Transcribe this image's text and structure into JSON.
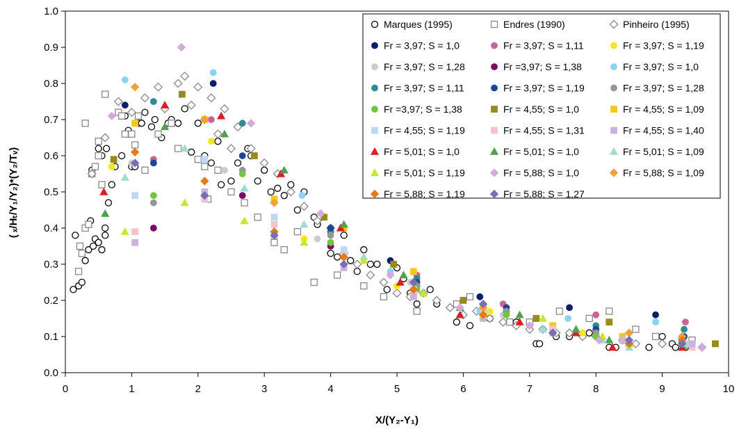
{
  "chart_data": {
    "type": "scatter",
    "title": "",
    "xlabel": "X/(Y₂-Y₁)",
    "ylabel": "( ₓ/Hₜ/Y₁/Y₂)*(Y₂/Tᵥ)",
    "xlim": [
      0,
      10
    ],
    "ylim": [
      0,
      1.0
    ],
    "xticks": [
      "0",
      "1",
      "2",
      "3",
      "4",
      "5",
      "6",
      "7",
      "8",
      "9",
      "10"
    ],
    "yticks": [
      "0.0",
      "0.1",
      "0.2",
      "0.3",
      "0.4",
      "0.5",
      "0.6",
      "0.7",
      "0.8",
      "0.9",
      "1.0"
    ],
    "grid": false,
    "legend_placement": "top-right",
    "series": [
      {
        "name": "Marques (1995)",
        "marker": "circle-open",
        "color": "#000000",
        "x": [
          0.12,
          0.15,
          0.2,
          0.25,
          0.3,
          0.35,
          0.38,
          0.42,
          0.45,
          0.5,
          0.55,
          0.6,
          0.65,
          0.7,
          0.4,
          0.5,
          0.55,
          0.6,
          0.62,
          0.75,
          0.85,
          0.9,
          0.95,
          1.0,
          1.05,
          1.1,
          1.15,
          1.2,
          1.3,
          1.35,
          1.45,
          1.55,
          1.6,
          1.7,
          1.8,
          1.9,
          2.0,
          2.1,
          2.2,
          2.3,
          2.35,
          2.5,
          2.6,
          2.75,
          2.8,
          2.9,
          3.0,
          3.1,
          3.2,
          3.3,
          3.4,
          3.5,
          3.6,
          3.75,
          3.8,
          4.0,
          4.1,
          4.2,
          4.3,
          4.4,
          4.5,
          4.6,
          4.7,
          4.85,
          5.0,
          5.1,
          5.2,
          5.3,
          5.5,
          5.6,
          5.9,
          6.1,
          6.4,
          6.8,
          7.1,
          7.15,
          7.4,
          7.6,
          7.9,
          8.2,
          8.3,
          8.8,
          9.0,
          9.15,
          9.2,
          9.35
        ],
        "y": [
          0.23,
          0.38,
          0.24,
          0.25,
          0.31,
          0.34,
          0.42,
          0.35,
          0.37,
          0.36,
          0.34,
          0.38,
          0.47,
          0.52,
          0.56,
          0.62,
          0.6,
          0.4,
          0.62,
          0.57,
          0.6,
          0.71,
          0.67,
          0.57,
          0.57,
          0.69,
          0.69,
          0.72,
          0.68,
          0.7,
          0.65,
          0.69,
          0.7,
          0.69,
          0.73,
          0.61,
          0.69,
          0.6,
          0.58,
          0.64,
          0.52,
          0.53,
          0.58,
          0.62,
          0.6,
          0.53,
          0.56,
          0.5,
          0.51,
          0.49,
          0.52,
          0.45,
          0.5,
          0.43,
          0.41,
          0.33,
          0.32,
          0.38,
          0.31,
          0.28,
          0.34,
          0.3,
          0.3,
          0.23,
          0.29,
          0.26,
          0.22,
          0.19,
          0.23,
          0.19,
          0.14,
          0.13,
          0.15,
          0.14,
          0.08,
          0.08,
          0.1,
          0.1,
          0.11,
          0.07,
          0.07,
          0.07,
          0.1,
          0.08,
          0.07,
          0.07
        ]
      },
      {
        "name": "Endres (1990)",
        "marker": "square-open",
        "color": "#888888",
        "x": [
          0.2,
          0.22,
          0.25,
          0.3,
          0.35,
          0.4,
          0.45,
          0.5,
          0.55,
          0.6,
          0.3,
          0.5,
          0.8,
          0.85,
          0.9,
          1.0,
          1.05,
          1.1,
          1.2,
          1.4,
          1.6,
          1.7,
          2.0,
          2.1,
          2.15,
          2.3,
          2.5,
          2.7,
          2.9,
          3.15,
          3.3,
          3.5,
          3.75,
          4.1,
          4.5,
          4.8,
          5.3,
          5.9,
          6.1,
          6.3,
          6.7,
          7.0,
          7.45,
          7.9,
          8.2,
          8.6,
          8.9,
          9.3,
          9.45
        ],
        "y": [
          0.28,
          0.35,
          0.33,
          0.4,
          0.41,
          0.55,
          0.57,
          0.6,
          0.52,
          0.77,
          0.69,
          0.64,
          0.72,
          0.71,
          0.66,
          0.66,
          0.63,
          0.71,
          0.56,
          0.66,
          0.69,
          0.62,
          0.59,
          0.57,
          0.48,
          0.56,
          0.5,
          0.47,
          0.43,
          0.36,
          0.34,
          0.39,
          0.25,
          0.27,
          0.24,
          0.21,
          0.17,
          0.19,
          0.21,
          0.17,
          0.14,
          0.14,
          0.17,
          0.15,
          0.17,
          0.12,
          0.1,
          0.09,
          0.09
        ]
      },
      {
        "name": "Pinheiro (1995)",
        "marker": "diamond-open",
        "color": "#888888",
        "x": [
          0.4,
          0.6,
          0.8,
          1.0,
          1.2,
          1.4,
          1.5,
          1.7,
          1.8,
          1.9,
          2.0,
          2.1,
          2.2,
          2.3,
          2.4,
          2.5,
          2.6,
          2.8,
          3.0,
          3.2,
          3.4,
          3.6,
          3.8,
          4.0,
          4.2,
          4.4,
          4.6,
          4.8,
          5.0,
          5.2,
          5.4,
          5.6,
          5.8,
          6.0,
          6.2,
          6.4,
          6.6,
          6.8,
          7.0,
          7.2,
          7.4,
          7.6,
          7.8,
          8.0,
          8.4,
          8.6,
          9.0,
          9.6
        ],
        "y": [
          0.55,
          0.65,
          0.75,
          0.72,
          0.76,
          0.79,
          0.73,
          0.8,
          0.82,
          0.74,
          0.79,
          0.7,
          0.76,
          0.66,
          0.73,
          0.62,
          0.68,
          0.62,
          0.58,
          0.55,
          0.5,
          0.46,
          0.42,
          0.4,
          0.33,
          0.3,
          0.27,
          0.25,
          0.22,
          0.21,
          0.22,
          0.2,
          0.18,
          0.16,
          0.17,
          0.15,
          0.14,
          0.13,
          0.12,
          0.12,
          0.11,
          0.11,
          0.1,
          0.1,
          0.09,
          0.08,
          0.08,
          0.07
        ]
      },
      {
        "name": "Fr = 3,97; S = 1,0",
        "marker": "circle",
        "color": "#0a1e6e",
        "x": [
          0.9,
          2.23,
          4.0,
          4.9,
          6.25,
          7.6,
          8.9
        ],
        "y": [
          0.74,
          0.8,
          0.39,
          0.31,
          0.21,
          0.18,
          0.16
        ]
      },
      {
        "name": "Fr = 3,97; S = 1,11",
        "marker": "circle",
        "color": "#c86496",
        "x": [
          1.33,
          2.2,
          4.0,
          5.3,
          6.6,
          8.0,
          9.35
        ],
        "y": [
          0.59,
          0.7,
          0.36,
          0.27,
          0.19,
          0.16,
          0.14
        ]
      },
      {
        "name": "Fr = 3,97; S = 1,19",
        "marker": "circle",
        "color": "#f5e61e",
        "x": [
          0.7,
          2.2,
          3.6,
          5.0,
          6.4,
          7.8,
          9.3
        ],
        "y": [
          0.57,
          0.64,
          0.37,
          0.24,
          0.17,
          0.11,
          0.08
        ]
      },
      {
        "name": "Fr = 3,97; S = 1,28",
        "marker": "circle",
        "color": "#cccccc",
        "x": [
          1.0,
          2.4,
          3.8,
          5.2,
          6.6,
          8.0,
          9.4
        ],
        "y": [
          0.58,
          0.56,
          0.37,
          0.25,
          0.16,
          0.12,
          0.08
        ]
      },
      {
        "name": "Fr =3,97; S = 1,38",
        "marker": "circle",
        "color": "#780a64",
        "x": [
          1.33,
          2.67,
          4.0,
          5.3,
          6.65,
          8.0,
          9.3
        ],
        "y": [
          0.4,
          0.49,
          0.35,
          0.24,
          0.17,
          0.11,
          0.08
        ]
      },
      {
        "name": "Fr = 3,97; S = 1,0",
        "marker": "circle",
        "color": "#8cd2f5",
        "x": [
          0.9,
          2.23,
          3.57,
          4.9,
          6.25,
          7.58,
          8.9
        ],
        "y": [
          0.81,
          0.83,
          0.49,
          0.28,
          0.17,
          0.15,
          0.14
        ]
      },
      {
        "name": "Fr = 3,97; S = 1,11",
        "marker": "circle",
        "color": "#2d8c96",
        "x": [
          1.33,
          2.67,
          4.0,
          5.3,
          6.65,
          8.0,
          9.33
        ],
        "y": [
          0.75,
          0.69,
          0.39,
          0.26,
          0.17,
          0.13,
          0.12
        ]
      },
      {
        "name": "Fr = 3,97; S = 1,19",
        "marker": "circle",
        "color": "#1e4696",
        "x": [
          1.33,
          2.67,
          4.0,
          5.3,
          6.65,
          8.0,
          9.33
        ],
        "y": [
          0.58,
          0.6,
          0.4,
          0.25,
          0.18,
          0.12,
          0.1
        ]
      },
      {
        "name": "Fr = 3,97; S = 1,28",
        "marker": "circle",
        "color": "#969696",
        "x": [
          1.33,
          2.67,
          4.0,
          5.3,
          6.65,
          8.0,
          9.33
        ],
        "y": [
          0.47,
          0.56,
          0.38,
          0.24,
          0.17,
          0.11,
          0.08
        ]
      },
      {
        "name": "Fr =3,97; S = 1,38",
        "marker": "circle",
        "color": "#6ec83c",
        "x": [
          1.33,
          2.67,
          4.0,
          5.3,
          6.65,
          8.0,
          9.33
        ],
        "y": [
          0.49,
          0.55,
          0.36,
          0.23,
          0.16,
          0.1,
          0.07
        ]
      },
      {
        "name": "Fr = 4,55; S = 1,0",
        "marker": "square",
        "color": "#968c1e",
        "x": [
          0.73,
          1.76,
          2.85,
          3.9,
          4.95,
          6.0,
          7.1,
          8.2,
          9.8
        ],
        "y": [
          0.59,
          0.77,
          0.6,
          0.43,
          0.3,
          0.2,
          0.15,
          0.14,
          0.08
        ]
      },
      {
        "name": "Fr = 4,55; S = 1,09",
        "marker": "square",
        "color": "#f5c81e",
        "x": [
          1.05,
          2.1,
          3.15,
          4.2,
          5.25,
          6.3,
          7.35,
          8.4,
          9.45
        ],
        "y": [
          0.69,
          0.7,
          0.48,
          0.4,
          0.28,
          0.18,
          0.13,
          0.1,
          0.08
        ]
      },
      {
        "name": "Fr = 4,55; S = 1,19",
        "marker": "square",
        "color": "#bed7f5",
        "x": [
          1.05,
          2.1,
          3.15,
          4.2,
          5.25,
          6.3,
          7.35,
          8.4,
          9.45
        ],
        "y": [
          0.49,
          0.59,
          0.43,
          0.34,
          0.23,
          0.17,
          0.12,
          0.09,
          0.07
        ]
      },
      {
        "name": "Fr = 4,55; S = 1,31",
        "marker": "square",
        "color": "#f5c3c8",
        "x": [
          1.05,
          2.1,
          3.15,
          4.2,
          5.25,
          6.3,
          7.35,
          8.4,
          9.45
        ],
        "y": [
          0.39,
          0.48,
          0.41,
          0.32,
          0.22,
          0.16,
          0.12,
          0.09,
          0.07
        ]
      },
      {
        "name": "Fr = 4,55; S = 1,40",
        "marker": "square",
        "color": "#c8b4dc",
        "x": [
          1.05,
          2.1,
          3.15,
          4.2,
          5.25,
          6.3,
          7.35,
          8.4,
          9.45
        ],
        "y": [
          0.36,
          0.5,
          0.38,
          0.29,
          0.21,
          0.15,
          0.11,
          0.09,
          0.08
        ]
      },
      {
        "name": "Fr = 5,01; S = 1,0",
        "marker": "triangle",
        "color": "#dc1e28",
        "x": [
          0.58,
          1.5,
          2.35,
          3.25,
          4.15,
          5.05,
          5.95,
          6.85,
          7.7,
          8.25,
          9.3
        ],
        "y": [
          0.5,
          0.74,
          0.71,
          0.55,
          0.4,
          0.25,
          0.16,
          0.14,
          0.11,
          0.07,
          0.07
        ]
      },
      {
        "name": "Fr = 5,01; S = 1,0",
        "marker": "triangle",
        "color": "#50a050",
        "x": [
          0.6,
          1.5,
          2.4,
          3.3,
          4.2,
          5.1,
          5.95,
          6.85,
          7.7,
          8.2,
          9.3
        ],
        "y": [
          0.44,
          0.68,
          0.66,
          0.56,
          0.41,
          0.27,
          0.18,
          0.16,
          0.12,
          0.09,
          0.08
        ]
      },
      {
        "name": "Fr = 5,01; S = 1,09",
        "marker": "triangle",
        "color": "#a0dcd2",
        "x": [
          0.9,
          1.8,
          2.7,
          3.6,
          4.5,
          5.4,
          6.3,
          7.2,
          8.1,
          8.5,
          9.35
        ],
        "y": [
          0.54,
          0.62,
          0.51,
          0.41,
          0.32,
          0.22,
          0.16,
          0.12,
          0.09,
          0.07,
          0.08
        ]
      },
      {
        "name": "Fr = 5,01; S = 1,19",
        "marker": "triangle",
        "color": "#c8e632",
        "x": [
          0.9,
          1.8,
          2.7,
          3.6,
          4.5,
          5.4,
          6.3,
          7.2,
          8.1,
          8.5
        ],
        "y": [
          0.39,
          0.47,
          0.42,
          0.36,
          0.31,
          0.22,
          0.16,
          0.15,
          0.1,
          0.08
        ]
      },
      {
        "name": "Fr = 5,88; S = 1,0",
        "marker": "diamond",
        "color": "#d2aadc",
        "x": [
          0.7,
          1.75,
          2.8,
          3.85,
          4.9,
          5.95,
          7.0,
          8.05,
          9.6
        ],
        "y": [
          0.71,
          0.9,
          0.69,
          0.44,
          0.27,
          0.18,
          0.13,
          0.09,
          0.07
        ]
      },
      {
        "name": "Fr = 5,88; S = 1,09",
        "marker": "diamond",
        "color": "#f0a03c",
        "x": [
          1.05,
          2.1,
          3.15,
          4.2,
          5.25,
          6.3,
          7.35,
          8.5,
          9.3
        ],
        "y": [
          0.79,
          0.7,
          0.47,
          0.32,
          0.23,
          0.18,
          0.11,
          0.11,
          0.1
        ]
      },
      {
        "name": "Fr = 5,88; S = 1,19",
        "marker": "diamond",
        "color": "#e6781e",
        "x": [
          1.05,
          2.1,
          3.15,
          4.2,
          5.25,
          6.3,
          7.35,
          8.5,
          9.3
        ],
        "y": [
          0.61,
          0.53,
          0.39,
          0.32,
          0.23,
          0.16,
          0.11,
          0.08,
          0.09
        ]
      },
      {
        "name": "Fr = 5,88; S = 1,27",
        "marker": "diamond",
        "color": "#7870b4",
        "x": [
          1.05,
          2.1,
          3.15,
          4.2,
          5.25,
          6.3,
          7.35,
          8.5,
          9.3
        ],
        "y": [
          0.58,
          0.49,
          0.38,
          0.3,
          0.25,
          0.19,
          0.11,
          0.09,
          0.08
        ]
      }
    ]
  }
}
